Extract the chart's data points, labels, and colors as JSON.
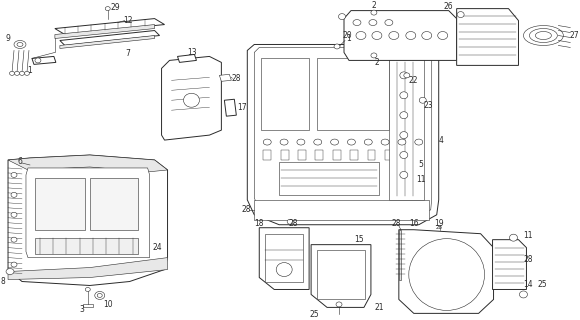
{
  "bg_color": "#ffffff",
  "line_color": "#2a2a2a",
  "fig_width": 5.8,
  "fig_height": 3.2,
  "dpi": 100,
  "label_fs": 5.5,
  "lw_main": 0.7,
  "lw_thin": 0.4,
  "lw_hatch": 0.3
}
